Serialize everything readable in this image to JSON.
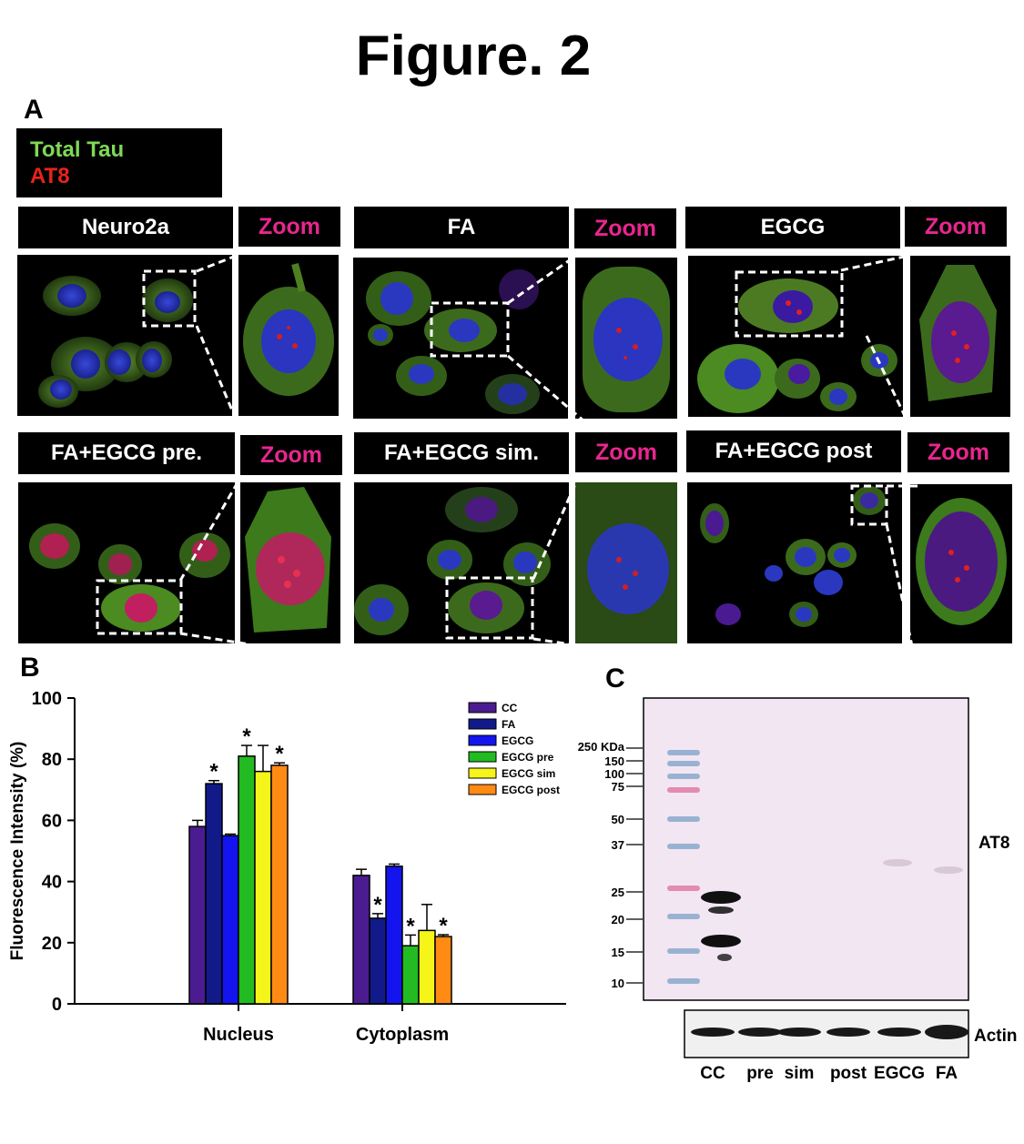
{
  "figure_title": "Figure. 2",
  "panel_a": {
    "letter": "A",
    "legend": {
      "total_tau": "Total Tau",
      "at8": "AT8"
    },
    "zoom_label": "Zoom",
    "conditions": [
      "Neuro2a",
      "FA",
      "EGCG",
      "FA+EGCG pre.",
      "FA+EGCG sim.",
      "FA+EGCG post"
    ],
    "colors": {
      "tau": "#6fbf3a",
      "at8": "#e8231b",
      "nucleus": "#2a3bd8",
      "zoom_text": "#e8268e"
    }
  },
  "panel_b": {
    "letter": "B",
    "chart_data": {
      "type": "bar",
      "categories": [
        "Nucleus",
        "Cytoplasm"
      ],
      "ylabel": "Fluorescence Intensity (%)",
      "xlabel": "",
      "ylim": [
        0,
        100
      ],
      "yticks": [
        0,
        20,
        40,
        60,
        80,
        100
      ],
      "legend_position": "top-right",
      "series": [
        {
          "name": "CC",
          "color": "#4b1c8f",
          "values": [
            58,
            42
          ],
          "errors": [
            2,
            2
          ],
          "significant": [
            false,
            false
          ]
        },
        {
          "name": "FA",
          "color": "#111a88",
          "values": [
            72,
            28
          ],
          "errors": [
            1,
            1.5
          ],
          "significant": [
            true,
            true
          ]
        },
        {
          "name": "EGCG",
          "color": "#1414ee",
          "values": [
            55,
            45
          ],
          "errors": [
            0.5,
            0.7
          ],
          "significant": [
            false,
            false
          ]
        },
        {
          "name": "EGCG pre",
          "color": "#22bb22",
          "values": [
            81,
            19
          ],
          "errors": [
            3.5,
            3.5
          ],
          "significant": [
            true,
            true
          ]
        },
        {
          "name": "EGCG sim",
          "color": "#f5f51a",
          "values": [
            76,
            24
          ],
          "errors": [
            8.5,
            8.5
          ],
          "significant": [
            false,
            false
          ]
        },
        {
          "name": "EGCG post",
          "color": "#ff8a14",
          "values": [
            78,
            22
          ],
          "errors": [
            0.8,
            0.6
          ],
          "significant": [
            true,
            true
          ]
        }
      ],
      "significance_marker": "*"
    }
  },
  "panel_c": {
    "letter": "C",
    "marker_label_top": "250 KDa",
    "markers": [
      "150",
      "100",
      "75",
      "50",
      "37",
      "25",
      "20",
      "15",
      "10"
    ],
    "blot_label": "AT8",
    "actin_label": "Actin",
    "lanes": [
      "CC",
      "pre",
      "sim",
      "post",
      "EGCG",
      "FA"
    ]
  }
}
